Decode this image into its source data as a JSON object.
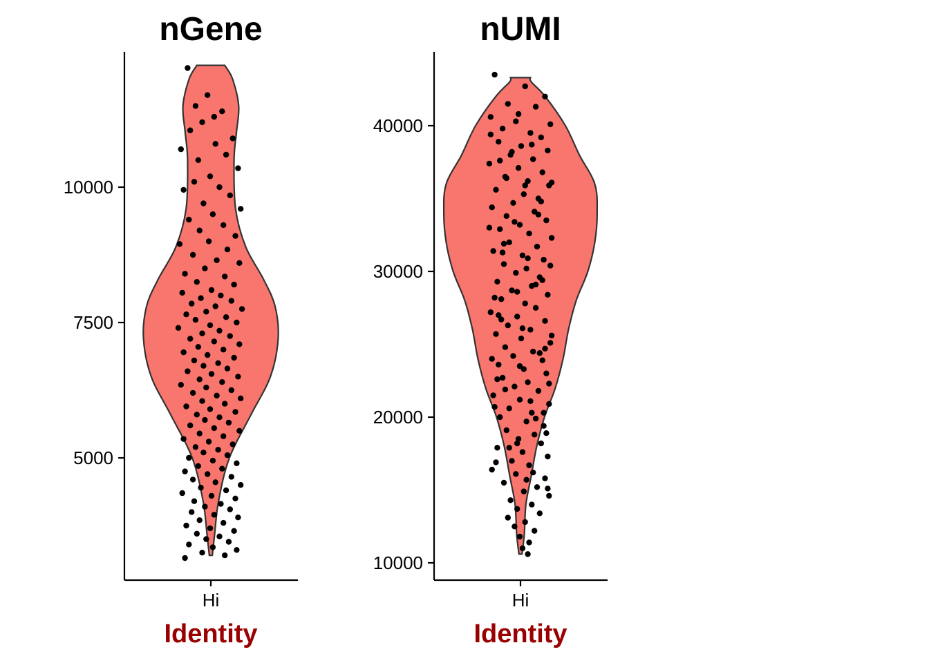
{
  "chart_data": [
    {
      "type": "violin",
      "title": "nGene",
      "xlabel": "Identity",
      "ylabel": "",
      "categories": [
        "Hi"
      ],
      "ylim": [
        3000,
        12500
      ],
      "yticks": [
        5000,
        7500,
        10000
      ],
      "ytick_labels": [
        "5000",
        "7500",
        "10000"
      ],
      "fill_color": "#F8766D",
      "outline_color": "#333333",
      "xlabel_color": "#990000",
      "point_color": "#000000",
      "density_profile": [
        [
          3200,
          0.02
        ],
        [
          3600,
          0.05
        ],
        [
          4200,
          0.1
        ],
        [
          5000,
          0.24
        ],
        [
          5800,
          0.52
        ],
        [
          6500,
          0.77
        ],
        [
          7200,
          0.87
        ],
        [
          7800,
          0.83
        ],
        [
          8300,
          0.68
        ],
        [
          8900,
          0.45
        ],
        [
          9600,
          0.32
        ],
        [
          10500,
          0.3
        ],
        [
          11000,
          0.33
        ],
        [
          11500,
          0.36
        ],
        [
          12000,
          0.28
        ],
        [
          12250,
          0.18
        ]
      ],
      "points": [
        [
          0.07,
          12200
        ],
        [
          0.22,
          11700
        ],
        [
          0.13,
          11500
        ],
        [
          0.33,
          11400
        ],
        [
          0.27,
          11300
        ],
        [
          0.18,
          11200
        ],
        [
          0.09,
          11050
        ],
        [
          0.41,
          10900
        ],
        [
          0.28,
          10800
        ],
        [
          0.02,
          10700
        ],
        [
          0.36,
          10600
        ],
        [
          0.15,
          10500
        ],
        [
          0.45,
          10350
        ],
        [
          0.24,
          10200
        ],
        [
          0.12,
          10100
        ],
        [
          0.31,
          10000
        ],
        [
          0.04,
          9950
        ],
        [
          0.39,
          9850
        ],
        [
          0.19,
          9700
        ],
        [
          0.47,
          9600
        ],
        [
          0.26,
          9500
        ],
        [
          0.08,
          9400
        ],
        [
          0.34,
          9300
        ],
        [
          0.16,
          9200
        ],
        [
          0.43,
          9100
        ],
        [
          0.23,
          9000
        ],
        [
          0.01,
          8950
        ],
        [
          0.37,
          8850
        ],
        [
          0.11,
          8750
        ],
        [
          0.29,
          8650
        ],
        [
          0.46,
          8600
        ],
        [
          0.2,
          8500
        ],
        [
          0.05,
          8400
        ],
        [
          0.35,
          8350
        ],
        [
          0.14,
          8250
        ],
        [
          0.42,
          8200
        ],
        [
          0.25,
          8100
        ],
        [
          0.03,
          8050
        ],
        [
          0.32,
          8000
        ],
        [
          0.17,
          7950
        ],
        [
          0.4,
          7900
        ],
        [
          0.1,
          7850
        ],
        [
          0.28,
          7800
        ],
        [
          0.48,
          7750
        ],
        [
          0.21,
          7700
        ],
        [
          0.06,
          7650
        ],
        [
          0.36,
          7600
        ],
        [
          0.13,
          7550
        ],
        [
          0.44,
          7500
        ],
        [
          0.24,
          7450
        ],
        [
          0.0,
          7400
        ],
        [
          0.31,
          7350
        ],
        [
          0.18,
          7300
        ],
        [
          0.39,
          7250
        ],
        [
          0.09,
          7200
        ],
        [
          0.27,
          7150
        ],
        [
          0.46,
          7100
        ],
        [
          0.15,
          7050
        ],
        [
          0.34,
          7000
        ],
        [
          0.04,
          6950
        ],
        [
          0.22,
          6900
        ],
        [
          0.42,
          6850
        ],
        [
          0.12,
          6800
        ],
        [
          0.3,
          6750
        ],
        [
          0.19,
          6700
        ],
        [
          0.37,
          6650
        ],
        [
          0.07,
          6600
        ],
        [
          0.25,
          6550
        ],
        [
          0.45,
          6500
        ],
        [
          0.16,
          6450
        ],
        [
          0.33,
          6400
        ],
        [
          0.02,
          6350
        ],
        [
          0.21,
          6300
        ],
        [
          0.4,
          6250
        ],
        [
          0.11,
          6200
        ],
        [
          0.29,
          6150
        ],
        [
          0.47,
          6100
        ],
        [
          0.18,
          6050
        ],
        [
          0.35,
          6000
        ],
        [
          0.06,
          5950
        ],
        [
          0.24,
          5900
        ],
        [
          0.43,
          5850
        ],
        [
          0.14,
          5800
        ],
        [
          0.31,
          5750
        ],
        [
          0.2,
          5700
        ],
        [
          0.38,
          5650
        ],
        [
          0.09,
          5600
        ],
        [
          0.27,
          5550
        ],
        [
          0.46,
          5500
        ],
        [
          0.16,
          5450
        ],
        [
          0.34,
          5400
        ],
        [
          0.04,
          5350
        ],
        [
          0.23,
          5300
        ],
        [
          0.41,
          5250
        ],
        [
          0.13,
          5200
        ],
        [
          0.3,
          5150
        ],
        [
          0.19,
          5100
        ],
        [
          0.37,
          5050
        ],
        [
          0.08,
          5000
        ],
        [
          0.26,
          4950
        ],
        [
          0.44,
          4900
        ],
        [
          0.15,
          4850
        ],
        [
          0.33,
          4800
        ],
        [
          0.05,
          4750
        ],
        [
          0.22,
          4700
        ],
        [
          0.4,
          4650
        ],
        [
          0.11,
          4600
        ],
        [
          0.28,
          4550
        ],
        [
          0.47,
          4500
        ],
        [
          0.17,
          4450
        ],
        [
          0.36,
          4400
        ],
        [
          0.03,
          4350
        ],
        [
          0.25,
          4300
        ],
        [
          0.43,
          4250
        ],
        [
          0.12,
          4200
        ],
        [
          0.32,
          4150
        ],
        [
          0.2,
          4100
        ],
        [
          0.39,
          4050
        ],
        [
          0.1,
          4000
        ],
        [
          0.27,
          3950
        ],
        [
          0.45,
          3900
        ],
        [
          0.16,
          3850
        ],
        [
          0.34,
          3800
        ],
        [
          0.06,
          3750
        ],
        [
          0.24,
          3700
        ],
        [
          0.42,
          3650
        ],
        [
          0.14,
          3600
        ],
        [
          0.31,
          3550
        ],
        [
          0.21,
          3500
        ],
        [
          0.38,
          3450
        ],
        [
          0.08,
          3400
        ],
        [
          0.26,
          3350
        ],
        [
          0.44,
          3300
        ],
        [
          0.18,
          3250
        ],
        [
          0.35,
          3200
        ],
        [
          0.05,
          3150
        ]
      ]
    },
    {
      "type": "violin",
      "title": "nUMI",
      "xlabel": "Identity",
      "ylabel": "",
      "categories": [
        "Hi"
      ],
      "ylim": [
        10000,
        43500
      ],
      "yticks": [
        10000,
        20000,
        30000,
        40000
      ],
      "ytick_labels": [
        "10000",
        "20000",
        "30000",
        "40000"
      ],
      "fill_color": "#F8766D",
      "outline_color": "#333333",
      "xlabel_color": "#990000",
      "point_color": "#000000",
      "density_profile": [
        [
          10600,
          0.02
        ],
        [
          12000,
          0.05
        ],
        [
          14000,
          0.07
        ],
        [
          16000,
          0.14
        ],
        [
          18000,
          0.21
        ],
        [
          20000,
          0.31
        ],
        [
          22000,
          0.45
        ],
        [
          24000,
          0.55
        ],
        [
          26000,
          0.62
        ],
        [
          28000,
          0.72
        ],
        [
          30000,
          0.87
        ],
        [
          32000,
          0.96
        ],
        [
          34000,
          0.99
        ],
        [
          36000,
          0.96
        ],
        [
          38000,
          0.76
        ],
        [
          40000,
          0.58
        ],
        [
          42000,
          0.32
        ],
        [
          43000,
          0.14
        ],
        [
          43300,
          0.13
        ]
      ],
      "points": [
        [
          0.05,
          43500
        ],
        [
          0.28,
          42700
        ],
        [
          0.43,
          42000
        ],
        [
          0.15,
          41500
        ],
        [
          0.36,
          41300
        ],
        [
          0.02,
          40600
        ],
        [
          0.21,
          40300
        ],
        [
          0.47,
          40100
        ],
        [
          0.11,
          39800
        ],
        [
          0.32,
          39500
        ],
        [
          0.4,
          39200
        ],
        [
          0.08,
          38900
        ],
        [
          0.25,
          38600
        ],
        [
          0.45,
          38300
        ],
        [
          0.17,
          38000
        ],
        [
          0.34,
          37700
        ],
        [
          0.01,
          37400
        ],
        [
          0.23,
          37100
        ],
        [
          0.41,
          36800
        ],
        [
          0.13,
          36500
        ],
        [
          0.3,
          36200
        ],
        [
          0.46,
          35900
        ],
        [
          0.06,
          35600
        ],
        [
          0.27,
          35300
        ],
        [
          0.38,
          35000
        ],
        [
          0.19,
          34700
        ],
        [
          0.03,
          34400
        ],
        [
          0.35,
          34100
        ],
        [
          0.14,
          33800
        ],
        [
          0.44,
          33500
        ],
        [
          0.24,
          33200
        ],
        [
          0.09,
          32900
        ],
        [
          0.31,
          32600
        ],
        [
          0.48,
          32300
        ],
        [
          0.16,
          32000
        ],
        [
          0.37,
          31700
        ],
        [
          0.04,
          31400
        ],
        [
          0.26,
          31100
        ],
        [
          0.42,
          30800
        ],
        [
          0.12,
          30500
        ],
        [
          0.29,
          30200
        ],
        [
          0.21,
          29900
        ],
        [
          0.39,
          29600
        ],
        [
          0.07,
          29300
        ],
        [
          0.33,
          29000
        ],
        [
          0.18,
          28700
        ],
        [
          0.45,
          28400
        ],
        [
          0.1,
          28100
        ],
        [
          0.28,
          27800
        ],
        [
          0.36,
          27500
        ],
        [
          0.02,
          27200
        ],
        [
          0.22,
          26900
        ],
        [
          0.43,
          26600
        ],
        [
          0.15,
          26300
        ],
        [
          0.32,
          26000
        ],
        [
          0.06,
          25700
        ],
        [
          0.25,
          25400
        ],
        [
          0.47,
          25100
        ],
        [
          0.13,
          24800
        ],
        [
          0.34,
          24500
        ],
        [
          0.19,
          24200
        ],
        [
          0.41,
          23900
        ],
        [
          0.08,
          23600
        ],
        [
          0.27,
          23300
        ],
        [
          0.44,
          23000
        ],
        [
          0.11,
          22700
        ],
        [
          0.3,
          22400
        ],
        [
          0.2,
          22100
        ],
        [
          0.38,
          21800
        ],
        [
          0.04,
          21500
        ],
        [
          0.24,
          21200
        ],
        [
          0.46,
          20900
        ],
        [
          0.16,
          20600
        ],
        [
          0.33,
          20300
        ],
        [
          0.09,
          20000
        ],
        [
          0.29,
          19700
        ],
        [
          0.42,
          19400
        ],
        [
          0.14,
          19100
        ],
        [
          0.35,
          18800
        ],
        [
          0.23,
          18500
        ],
        [
          0.4,
          18200
        ],
        [
          0.07,
          17900
        ],
        [
          0.26,
          17600
        ],
        [
          0.45,
          17300
        ],
        [
          0.18,
          17000
        ],
        [
          0.31,
          16700
        ],
        [
          0.03,
          16400
        ],
        [
          0.21,
          16100
        ],
        [
          0.43,
          15800
        ],
        [
          0.12,
          15500
        ],
        [
          0.37,
          15200
        ],
        [
          0.27,
          14900
        ],
        [
          0.46,
          14600
        ],
        [
          0.17,
          14300
        ],
        [
          0.33,
          14000
        ],
        [
          0.22,
          13700
        ],
        [
          0.39,
          13400
        ],
        [
          0.15,
          13100
        ],
        [
          0.28,
          12800
        ],
        [
          0.2,
          12500
        ],
        [
          0.35,
          12200
        ],
        [
          0.24,
          11800
        ],
        [
          0.31,
          11400
        ],
        [
          0.26,
          11000
        ],
        [
          0.3,
          10600
        ],
        [
          0.02,
          39400
        ],
        [
          0.48,
          36100
        ],
        [
          0.01,
          33000
        ],
        [
          0.47,
          30400
        ],
        [
          0.05,
          28200
        ],
        [
          0.48,
          25600
        ],
        [
          0.03,
          24000
        ],
        [
          0.46,
          22300
        ],
        [
          0.05,
          20700
        ],
        [
          0.44,
          18900
        ],
        [
          0.06,
          16900
        ],
        [
          0.45,
          15100
        ],
        [
          0.09,
          37600
        ],
        [
          0.4,
          34800
        ],
        [
          0.12,
          31900
        ],
        [
          0.36,
          29100
        ],
        [
          0.1,
          26700
        ],
        [
          0.39,
          24400
        ],
        [
          0.13,
          21900
        ],
        [
          0.36,
          19900
        ],
        [
          0.16,
          17900
        ],
        [
          0.34,
          16200
        ],
        [
          0.18,
          38200
        ],
        [
          0.28,
          35900
        ],
        [
          0.2,
          33400
        ],
        [
          0.3,
          30900
        ],
        [
          0.22,
          28600
        ],
        [
          0.26,
          26100
        ],
        [
          0.24,
          23500
        ],
        [
          0.32,
          21100
        ],
        [
          0.22,
          18200
        ],
        [
          0.29,
          15700
        ],
        [
          0.23,
          40800
        ],
        [
          0.33,
          38700
        ],
        [
          0.14,
          36400
        ],
        [
          0.38,
          33900
        ],
        [
          0.11,
          31300
        ],
        [
          0.41,
          29400
        ],
        [
          0.08,
          27000
        ],
        [
          0.43,
          24700
        ],
        [
          0.07,
          22600
        ],
        [
          0.42,
          20300
        ]
      ]
    }
  ]
}
